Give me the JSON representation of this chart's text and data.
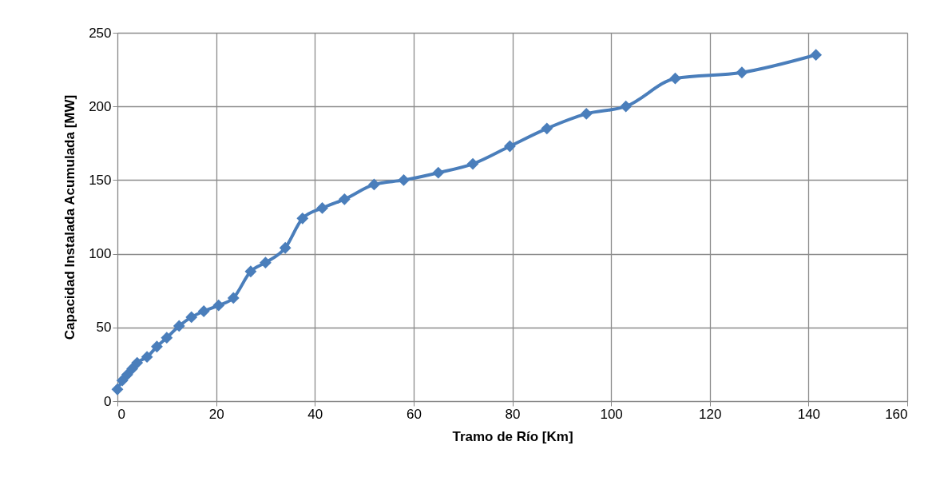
{
  "chart_data": {
    "type": "line",
    "xlabel": "Tramo de Río [Km]",
    "ylabel": "Capacidad Instalada Acumulada [MW]",
    "x": [
      0,
      1,
      2,
      3,
      4,
      6,
      8,
      10,
      12.5,
      15,
      17.5,
      20.5,
      23.5,
      27,
      30,
      34,
      37.5,
      41.5,
      46,
      52,
      58,
      65,
      72,
      79.5,
      87,
      95,
      103,
      113,
      126.5,
      141.5
    ],
    "series": [
      {
        "color": "#4a7ebb",
        "values": [
          8,
          14,
          18,
          22,
          26,
          30,
          37,
          43,
          51,
          57,
          61,
          65,
          70,
          88,
          94,
          104,
          124,
          131,
          137,
          147,
          150,
          155,
          161,
          173,
          185,
          195,
          200,
          219,
          223,
          235
        ]
      }
    ],
    "xlim": [
      0,
      160
    ],
    "xticks": [
      0,
      20,
      40,
      60,
      80,
      100,
      120,
      140,
      160
    ],
    "ylim": [
      0,
      250
    ],
    "yticks": [
      0,
      50,
      100,
      150,
      200,
      250
    ],
    "grid": true,
    "marker": "diamond",
    "line_style": "solid"
  }
}
